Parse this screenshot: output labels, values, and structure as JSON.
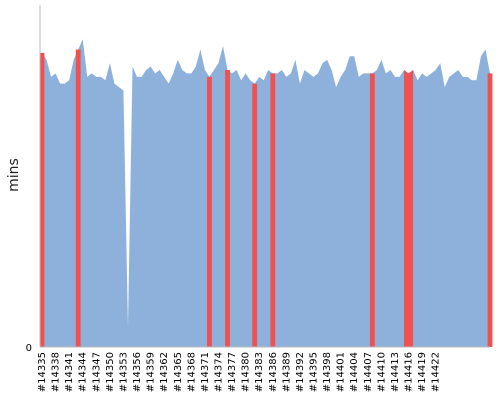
{
  "chart_data": {
    "type": "area",
    "title": "",
    "xlabel": "",
    "ylabel": "mins",
    "ylim": [
      0,
      100
    ],
    "y_ticks": [
      0
    ],
    "grid": false,
    "legend": "none",
    "first_build": 14335,
    "x_tick_labels": [
      "#14335",
      "#14338",
      "#14341",
      "#14344",
      "#14347",
      "#14350",
      "#14353",
      "#14356",
      "#14359",
      "#14362",
      "#14365",
      "#14368",
      "#14371",
      "#14374",
      "#14377",
      "#14380",
      "#14383",
      "#14386",
      "#14389",
      "#14392",
      "#14395",
      "#14398",
      "#14401",
      "#14404",
      "#14407",
      "#14410",
      "#14413",
      "#14416",
      "#14419",
      "#14422"
    ],
    "status_colors": {
      "passed": "#8eb1dc",
      "failed": "#f05050"
    },
    "values": [
      86,
      84,
      79,
      80,
      77,
      77,
      78,
      84,
      87,
      90,
      79,
      80,
      79,
      79,
      78,
      83,
      77,
      76,
      75,
      6,
      82,
      79,
      79,
      81,
      82,
      80,
      81,
      79,
      77,
      80,
      84,
      81,
      80,
      80,
      82,
      87,
      81,
      79,
      81,
      83,
      88,
      81,
      80,
      81,
      78,
      80,
      78,
      77,
      79,
      78,
      81,
      80,
      80,
      81,
      79,
      80,
      84,
      77,
      81,
      80,
      79,
      80,
      83,
      84,
      81,
      76,
      79,
      81,
      85,
      85,
      79,
      80,
      80,
      80,
      81,
      84,
      80,
      81,
      79,
      79,
      81,
      80,
      81,
      78,
      80,
      79,
      80,
      81,
      83,
      76,
      79,
      80,
      81,
      79,
      79,
      78,
      78,
      85,
      87,
      80
    ],
    "failed_ranges": [
      [
        0,
        0
      ],
      [
        8,
        8
      ],
      [
        37,
        37
      ],
      [
        41,
        41
      ],
      [
        47,
        47
      ],
      [
        51,
        51
      ],
      [
        73,
        73
      ],
      [
        80,
        82
      ],
      [
        99,
        99
      ]
    ]
  }
}
